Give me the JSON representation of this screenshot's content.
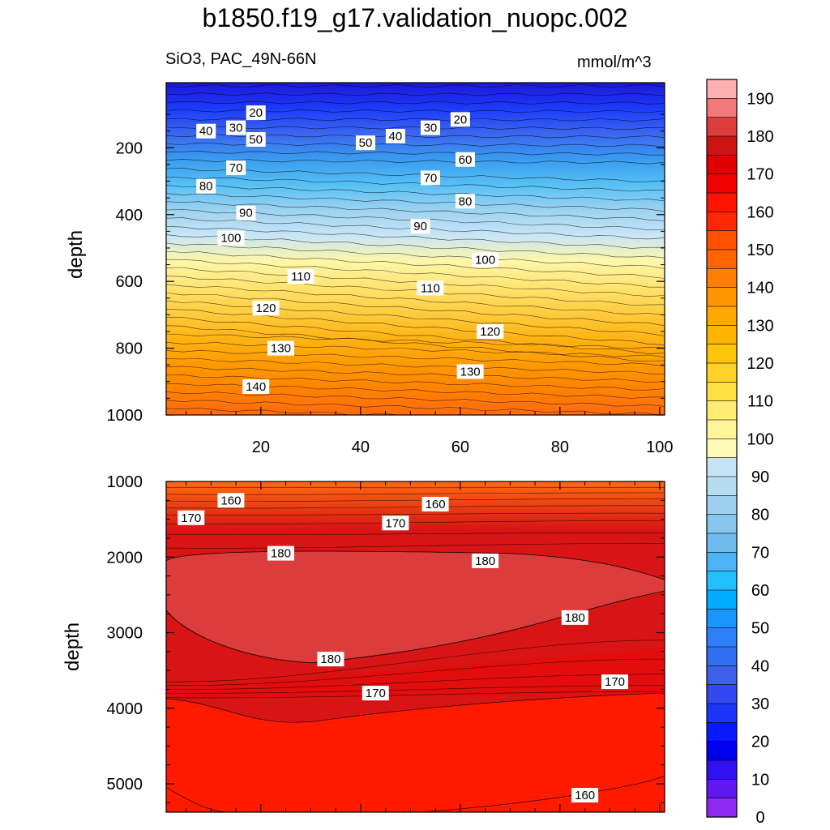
{
  "title": "b1850.f19_g17.validation_nuopc.002",
  "chart_data": [
    {
      "type": "contour",
      "panel": "upper",
      "variable": "SiO3",
      "region": "PAC_49N-66N",
      "units": "mmol/m^3",
      "ylabel": "depth",
      "xlabel": "",
      "xlim": [
        1,
        101
      ],
      "ylim": [
        1000,
        5
      ],
      "x_ticks": [
        20,
        40,
        60,
        80,
        100
      ],
      "y_ticks": [
        200,
        400,
        600,
        800,
        1000
      ],
      "contour_labels": [
        {
          "value": 20,
          "x": 19,
          "y": 95
        },
        {
          "value": 40,
          "x": 9,
          "y": 150
        },
        {
          "value": 30,
          "x": 15,
          "y": 140
        },
        {
          "value": 50,
          "x": 19,
          "y": 175
        },
        {
          "value": 70,
          "x": 15,
          "y": 260
        },
        {
          "value": 80,
          "x": 9,
          "y": 315
        },
        {
          "value": 90,
          "x": 17,
          "y": 395
        },
        {
          "value": 100,
          "x": 14,
          "y": 470
        },
        {
          "value": 110,
          "x": 28,
          "y": 585
        },
        {
          "value": 120,
          "x": 21,
          "y": 680
        },
        {
          "value": 130,
          "x": 24,
          "y": 800
        },
        {
          "value": 140,
          "x": 19,
          "y": 915
        },
        {
          "value": 50,
          "x": 41,
          "y": 185
        },
        {
          "value": 40,
          "x": 47,
          "y": 165
        },
        {
          "value": 30,
          "x": 54,
          "y": 140
        },
        {
          "value": 20,
          "x": 60,
          "y": 115
        },
        {
          "value": 60,
          "x": 61,
          "y": 235
        },
        {
          "value": 70,
          "x": 54,
          "y": 290
        },
        {
          "value": 80,
          "x": 61,
          "y": 360
        },
        {
          "value": 90,
          "x": 52,
          "y": 435
        },
        {
          "value": 100,
          "x": 65,
          "y": 535
        },
        {
          "value": 110,
          "x": 54,
          "y": 620
        },
        {
          "value": 120,
          "x": 66,
          "y": 750
        },
        {
          "value": 130,
          "x": 62,
          "y": 870
        }
      ]
    },
    {
      "type": "contour",
      "panel": "lower",
      "variable": "SiO3",
      "region": "PAC_49N-66N",
      "ylabel": "depth",
      "xlim": [
        1,
        101
      ],
      "ylim": [
        5375,
        1000
      ],
      "y_ticks": [
        1000,
        2000,
        3000,
        4000,
        5000
      ],
      "contour_labels": [
        {
          "value": 160,
          "x": 14,
          "y": 1250
        },
        {
          "value": 170,
          "x": 6,
          "y": 1480
        },
        {
          "value": 180,
          "x": 24,
          "y": 1950
        },
        {
          "value": 160,
          "x": 55,
          "y": 1300
        },
        {
          "value": 170,
          "x": 47,
          "y": 1550
        },
        {
          "value": 180,
          "x": 65,
          "y": 2050
        },
        {
          "value": 180,
          "x": 83,
          "y": 2800
        },
        {
          "value": 180,
          "x": 34,
          "y": 3350
        },
        {
          "value": 170,
          "x": 43,
          "y": 3800
        },
        {
          "value": 170,
          "x": 91,
          "y": 3650
        },
        {
          "value": 160,
          "x": 85,
          "y": 5150
        }
      ]
    }
  ],
  "colorbar": {
    "labels": [
      "190",
      "180",
      "170",
      "160",
      "150",
      "140",
      "130",
      "120",
      "110",
      "100",
      "90",
      "80",
      "70",
      "60",
      "50",
      "40",
      "30",
      "20",
      "10",
      "0"
    ],
    "colors": [
      "#fdb0b0",
      "#f07878",
      "#dc3c3c",
      "#cc1414",
      "#e00000",
      "#f00000",
      "#ff1400",
      "#ff2800",
      "#ff5000",
      "#ff6400",
      "#ff8000",
      "#ff9600",
      "#ffa800",
      "#ffb400",
      "#ffc40c",
      "#ffd22a",
      "#ffe040",
      "#ffec74",
      "#fff49a",
      "#fffab8",
      "#c6e4f6",
      "#b6dcf2",
      "#a0d0f0",
      "#88c6ee",
      "#6ebcee",
      "#4cb4f4",
      "#22c0ff",
      "#00acff",
      "#1a96ff",
      "#2c80f8",
      "#3070f0",
      "#3c60e8",
      "#3448f0",
      "#1c34f8",
      "#0a18ff",
      "#0000f0",
      "#3010f0",
      "#6018f0",
      "#8c28f0"
    ]
  },
  "field_colors": {
    "upper_stops": [
      "#2018d8",
      "#1c3af8",
      "#3a66ee",
      "#3a9cf0",
      "#56c0f4",
      "#9ed2f0",
      "#c8e6f6",
      "#fff6a8",
      "#ffe470",
      "#ffcc40",
      "#ffb414",
      "#ff9a00",
      "#ff8200",
      "#ff6a10"
    ],
    "lower_top": "#ff6a10",
    "lower_170": "#d81414",
    "lower_180": "#dc3c3c",
    "lower_165": "#ee0808",
    "lower_160": "#ff1a00"
  }
}
